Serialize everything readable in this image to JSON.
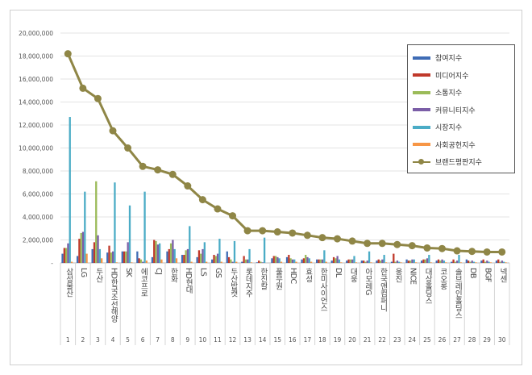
{
  "chart_data": {
    "type": "bar",
    "title": "",
    "xlabel": "",
    "ylabel": "",
    "ylim": [
      0,
      20000000
    ],
    "yticks": [
      "-",
      "2,000,000",
      "4,000,000",
      "6,000,000",
      "8,000,000",
      "10,000,000",
      "12,000,000",
      "14,000,000",
      "16,000,000",
      "18,000,000",
      "20,000,000"
    ],
    "legend_position": "top-right",
    "ranks": [
      "1",
      "2",
      "3",
      "4",
      "5",
      "6",
      "7",
      "8",
      "9",
      "10",
      "11",
      "12",
      "13",
      "14",
      "15",
      "16",
      "17",
      "18",
      "19",
      "20",
      "21",
      "22",
      "23",
      "24",
      "25",
      "26",
      "27",
      "28",
      "29",
      "30"
    ],
    "categories": [
      "삼성물산",
      "LG",
      "두산",
      "HD한국조선해양",
      "SK",
      "에코프로",
      "CJ",
      "한화",
      "HD현대",
      "LS",
      "GS",
      "두산밥캣",
      "롯데지주",
      "한진칼",
      "풀무원",
      "HDC",
      "효성",
      "한미사이언스",
      "DL",
      "대웅",
      "아모레G",
      "한국앤컴퍼니",
      "웅진",
      "NICE",
      "대상홀딩스",
      "코오롱",
      "솔브레인홀딩스",
      "DB",
      "BGF",
      "넥센"
    ],
    "series": [
      {
        "name": "참여지수",
        "color": "#3f6cb5",
        "values": [
          800000,
          600000,
          1200000,
          900000,
          1000000,
          1000000,
          500000,
          1000000,
          700000,
          500000,
          300000,
          1000000,
          100000,
          50000,
          400000,
          500000,
          300000,
          300000,
          200000,
          200000,
          200000,
          200000,
          100000,
          300000,
          200000,
          200000,
          100000,
          300000,
          200000,
          200000
        ]
      },
      {
        "name": "미디어지수",
        "color": "#c0392b",
        "values": [
          1300000,
          2100000,
          1800000,
          1500000,
          1000000,
          400000,
          2000000,
          1200000,
          700000,
          1100000,
          700000,
          500000,
          600000,
          200000,
          600000,
          700000,
          400000,
          300000,
          500000,
          300000,
          200000,
          300000,
          800000,
          200000,
          300000,
          300000,
          300000,
          200000,
          300000,
          300000
        ]
      },
      {
        "name": "소통지수",
        "color": "#9bbb59",
        "values": [
          1300000,
          2600000,
          7100000,
          900000,
          1000000,
          300000,
          1900000,
          1700000,
          1100000,
          800000,
          600000,
          300000,
          300000,
          100000,
          600000,
          400000,
          700000,
          300000,
          400000,
          300000,
          100000,
          200000,
          100000,
          200000,
          300000,
          200000,
          100000,
          100000,
          100000,
          100000
        ]
      },
      {
        "name": "커뮤니티지수",
        "color": "#7b5ea7",
        "values": [
          1700000,
          2700000,
          2400000,
          1000000,
          1800000,
          100000,
          1600000,
          2000000,
          1200000,
          1200000,
          800000,
          100000,
          300000,
          50000,
          500000,
          300000,
          500000,
          300000,
          600000,
          300000,
          200000,
          300000,
          200000,
          300000,
          400000,
          300000,
          200000,
          200000,
          200000,
          200000
        ]
      },
      {
        "name": "시장지수",
        "color": "#4bacc6",
        "values": [
          12700000,
          6200000,
          1200000,
          7000000,
          5000000,
          6200000,
          1700000,
          1200000,
          3200000,
          1800000,
          2100000,
          1900000,
          1200000,
          2200000,
          400000,
          300000,
          400000,
          1100000,
          300000,
          600000,
          1000000,
          700000,
          100000,
          300000,
          700000,
          200000,
          700000,
          100000,
          100000,
          100000
        ]
      },
      {
        "name": "사회공헌지수",
        "color": "#f79646",
        "values": [
          100000,
          800000,
          400000,
          50000,
          50000,
          200000,
          300000,
          400000,
          100000,
          100000,
          100000,
          100000,
          50000,
          0,
          100000,
          100000,
          100000,
          100000,
          50000,
          50000,
          50000,
          50000,
          50000,
          50000,
          50000,
          50000,
          50000,
          50000,
          50000,
          50000
        ]
      }
    ],
    "line": {
      "name": "브랜드평판지수",
      "color": "#8f8646",
      "values": [
        18200000,
        15200000,
        14300000,
        11500000,
        10000000,
        8400000,
        8100000,
        7700000,
        6700000,
        5500000,
        4700000,
        4100000,
        2800000,
        2800000,
        2700000,
        2600000,
        2400000,
        2200000,
        2100000,
        1900000,
        1700000,
        1700000,
        1600000,
        1500000,
        1300000,
        1250000,
        1050000,
        1000000,
        950000,
        950000
      ]
    }
  }
}
